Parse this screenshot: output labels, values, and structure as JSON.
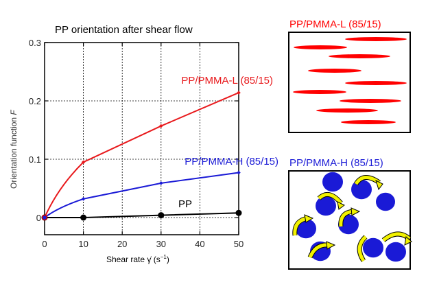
{
  "chart_data": {
    "type": "line",
    "title": "PP orientation after shear flow",
    "xlabel": "Shear rate γ̇ (s⁻¹)",
    "xlabel_parts": {
      "text": "Shear rate ",
      "symbol": "γ̇",
      "unit_open": " (s",
      "unit_exp": "−1",
      "unit_close": ")"
    },
    "ylabel": "Orientation function F",
    "ylabel_parts": {
      "text": "Orientation function ",
      "symbol": "F"
    },
    "xlim": [
      0,
      50
    ],
    "ylim": [
      -0.03,
      0.3
    ],
    "x_ticks": [
      0,
      10,
      20,
      30,
      40,
      50
    ],
    "x_tick_labels": [
      "0",
      "10",
      "20",
      "30",
      "40",
      "50"
    ],
    "y_ticks": [
      0,
      0.1,
      0.2,
      0.3
    ],
    "y_tick_labels": [
      "0",
      "0.1",
      "0.2",
      "0.3"
    ],
    "grid": true,
    "x": [
      0,
      10,
      30,
      50
    ],
    "series": [
      {
        "name": "PP/PMMA-L (85/15)",
        "color": "#e8191c",
        "values": [
          0,
          0.095,
          0.157,
          0.214
        ]
      },
      {
        "name": "PP/PMMA-H (85/15)",
        "color": "#1a1ad6",
        "values": [
          0,
          0.032,
          0.059,
          0.077
        ]
      },
      {
        "name": "PP",
        "color": "#000000",
        "values": [
          0,
          0,
          0.004,
          0.008
        ]
      }
    ]
  },
  "schematics": [
    {
      "title": "PP/PMMA-L (85/15)",
      "color": "#ff0000",
      "shape": "elongated-droplets"
    },
    {
      "title": "PP/PMMA-H (85/15)",
      "color": "#1a1ad6",
      "shape": "spherical-droplets-rotating",
      "arrow_color": "#f2f200"
    }
  ]
}
